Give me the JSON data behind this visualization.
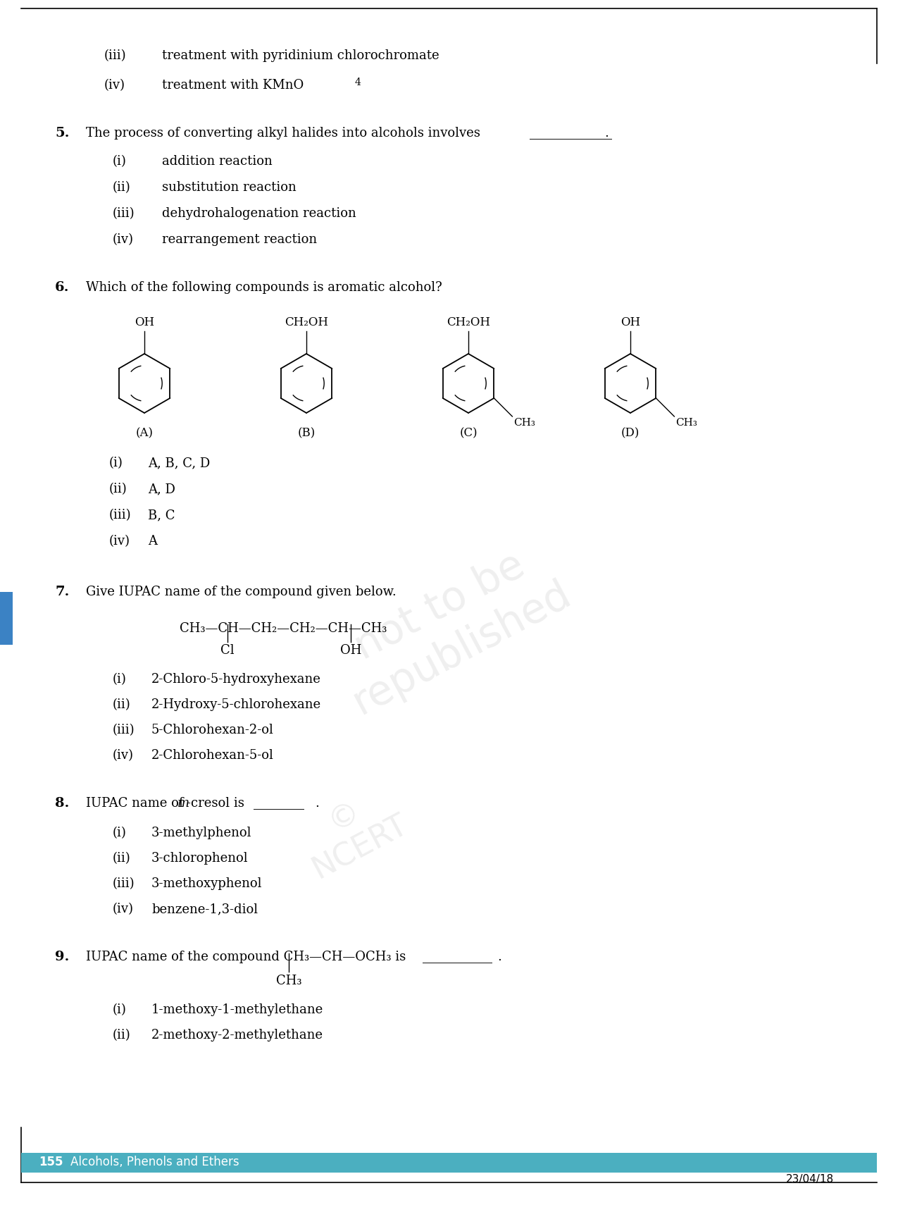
{
  "bg_color": "#ffffff",
  "border_color": "#000000",
  "footer_bg": "#4BAFC0",
  "footer_text_color": "#ffffff",
  "main_font": "serif",
  "q_fontsize": 13,
  "qnum_fontsize": 14,
  "footer_fontsize": 12,
  "q3_iii": "(iii)",
  "q3_iii_text": "treatment with pyridinium chlorochromate",
  "q3_iv": "(iv)",
  "q3_iv_text": "treatment with KMnO",
  "q3_iv_sub": "4",
  "q5_num": "5.",
  "q5_text": "The process of converting alkyl halides into alcohols involves",
  "q5_blank": "_____________",
  "q5_i": "(i)",
  "q5_i_text": "addition reaction",
  "q5_ii": "(ii)",
  "q5_ii_text": "substitution reaction",
  "q5_iii": "(iii)",
  "q5_iii_text": "dehydrohalogenation reaction",
  "q5_iv": "(iv)",
  "q5_iv_text": "rearrangement reaction",
  "q6_num": "6.",
  "q6_text": "Which of the following compounds is aromatic alcohol?",
  "q6_A_label": "(A)",
  "q6_A_group": "OH",
  "q6_B_label": "(B)",
  "q6_B_group": "CH₂OH",
  "q6_C_label": "(C)",
  "q6_C_group": "CH₂OH",
  "q6_C_sub": "CH₃",
  "q6_D_label": "(D)",
  "q6_D_group": "OH",
  "q6_D_sub": "CH₃",
  "q6_i": "(i)",
  "q6_i_text": "A, B, C, D",
  "q6_ii": "(ii)",
  "q6_ii_text": "A, D",
  "q6_iii": "(iii)",
  "q6_iii_text": "B, C",
  "q6_iv": "(iv)",
  "q6_iv_text": "A",
  "q7_num": "7.",
  "q7_text": "Give IUPAC name of the compound given below.",
  "q7_chain": "CH₃—CH—CH₂—CH₂—CH—CH₃",
  "q7_cl": "Cl",
  "q7_oh": "OH",
  "q7_i": "(i)",
  "q7_i_text": "2-Chloro-5-hydroxyhexane",
  "q7_ii": "(ii)",
  "q7_ii_text": "2-Hydroxy-5-chlorohexane",
  "q7_iii": "(iii)",
  "q7_iii_text": "5-Chlorohexan-2-ol",
  "q7_iv": "(iv)",
  "q7_iv_text": "2-Chlorohexan-5-ol",
  "q8_num": "8.",
  "q8_pre": "IUPAC name of ",
  "q8_m": "m",
  "q8_post": "-cresol is ",
  "q8_blank": "________",
  "q8_i": "(i)",
  "q8_i_text": "3-methylphenol",
  "q8_ii": "(ii)",
  "q8_ii_text": "3-chlorophenol",
  "q8_iii": "(iii)",
  "q8_iii_text": "3-methoxyphenol",
  "q8_iv": "(iv)",
  "q8_iv_text": "benzene-1,3-diol",
  "q9_num": "9.",
  "q9_pre": "IUPAC name of the compound CH₃—CH—OCH₃ is ",
  "q9_blank": "___________",
  "q9_sub": "CH₃",
  "q9_i": "(i)",
  "q9_i_text": "1-methoxy-1-methylethane",
  "q9_ii": "(ii)",
  "q9_ii_text": "2-methoxy-2-methylethane",
  "footer_page": "155",
  "footer_chapter": "Alcohols, Phenols and Ethers",
  "date": "23/04/18"
}
